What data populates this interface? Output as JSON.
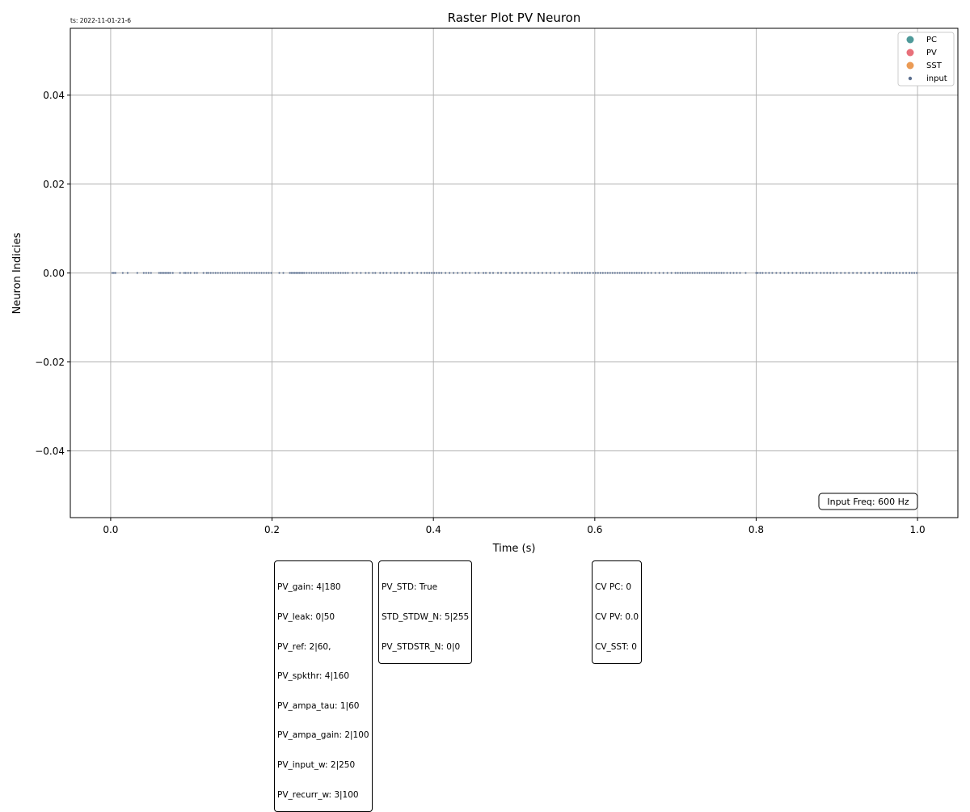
{
  "timestamp": "ts: 2022-11-01-21-6",
  "chart_data": {
    "type": "scatter",
    "title": "Raster Plot PV Neuron",
    "xlabel": "Time (s)",
    "ylabel": "Neuron Indicies",
    "xlim": [
      -0.05,
      1.05
    ],
    "ylim": [
      -0.055,
      0.055
    ],
    "x_ticks": [
      0.0,
      0.2,
      0.4,
      0.6,
      0.8,
      1.0
    ],
    "x_tick_labels": [
      "0.0",
      "0.2",
      "0.4",
      "0.6",
      "0.8",
      "1.0"
    ],
    "y_ticks": [
      0.04,
      0.02,
      0.0,
      -0.02,
      -0.04
    ],
    "y_tick_labels": [
      "0.04",
      "0.02",
      "0.00",
      "−0.02",
      "−0.04"
    ],
    "grid": true,
    "legend_position": "top-right",
    "legend": [
      {
        "label": "PC",
        "color": "#4f9a9a"
      },
      {
        "label": "PV",
        "color": "#e8707a"
      },
      {
        "label": "SST",
        "color": "#eb9b55"
      },
      {
        "label": "input",
        "color": "#5b6f8f"
      }
    ],
    "series": [
      {
        "name": "input",
        "color": "#5b6f8f",
        "y": 0,
        "x": [
          0.002,
          0.004,
          0.006,
          0.015,
          0.021,
          0.033,
          0.041,
          0.044,
          0.047,
          0.05,
          0.06,
          0.062,
          0.064,
          0.066,
          0.068,
          0.07,
          0.072,
          0.074,
          0.077,
          0.086,
          0.091,
          0.093,
          0.096,
          0.099,
          0.104,
          0.107,
          0.115,
          0.119,
          0.121,
          0.124,
          0.127,
          0.13,
          0.133,
          0.136,
          0.139,
          0.142,
          0.145,
          0.148,
          0.151,
          0.154,
          0.157,
          0.16,
          0.163,
          0.166,
          0.169,
          0.172,
          0.175,
          0.178,
          0.181,
          0.184,
          0.187,
          0.19,
          0.193,
          0.196,
          0.199,
          0.209,
          0.214,
          0.222,
          0.224,
          0.226,
          0.228,
          0.23,
          0.232,
          0.234,
          0.236,
          0.238,
          0.24,
          0.243,
          0.246,
          0.249,
          0.252,
          0.255,
          0.258,
          0.261,
          0.264,
          0.267,
          0.27,
          0.273,
          0.276,
          0.279,
          0.282,
          0.285,
          0.288,
          0.291,
          0.294,
          0.3,
          0.305,
          0.31,
          0.316,
          0.32,
          0.325,
          0.328,
          0.334,
          0.338,
          0.342,
          0.347,
          0.352,
          0.355,
          0.36,
          0.364,
          0.37,
          0.374,
          0.38,
          0.385,
          0.389,
          0.392,
          0.395,
          0.398,
          0.401,
          0.404,
          0.407,
          0.41,
          0.415,
          0.42,
          0.425,
          0.43,
          0.436,
          0.44,
          0.445,
          0.452,
          0.456,
          0.462,
          0.465,
          0.47,
          0.474,
          0.48,
          0.484,
          0.49,
          0.495,
          0.5,
          0.505,
          0.51,
          0.515,
          0.52,
          0.525,
          0.53,
          0.535,
          0.54,
          0.545,
          0.55,
          0.556,
          0.562,
          0.567,
          0.572,
          0.575,
          0.578,
          0.581,
          0.584,
          0.588,
          0.591,
          0.594,
          0.598,
          0.601,
          0.604,
          0.607,
          0.61,
          0.613,
          0.616,
          0.619,
          0.622,
          0.625,
          0.628,
          0.631,
          0.634,
          0.637,
          0.64,
          0.643,
          0.646,
          0.649,
          0.652,
          0.655,
          0.658,
          0.662,
          0.666,
          0.67,
          0.675,
          0.68,
          0.685,
          0.69,
          0.695,
          0.7,
          0.703,
          0.706,
          0.709,
          0.712,
          0.715,
          0.718,
          0.721,
          0.724,
          0.727,
          0.73,
          0.733,
          0.736,
          0.739,
          0.742,
          0.745,
          0.748,
          0.751,
          0.754,
          0.757,
          0.76,
          0.764,
          0.768,
          0.772,
          0.776,
          0.78,
          0.787,
          0.8,
          0.802,
          0.805,
          0.808,
          0.812,
          0.816,
          0.82,
          0.825,
          0.83,
          0.835,
          0.84,
          0.845,
          0.85,
          0.855,
          0.858,
          0.862,
          0.866,
          0.87,
          0.875,
          0.88,
          0.884,
          0.888,
          0.892,
          0.896,
          0.9,
          0.905,
          0.91,
          0.915,
          0.92,
          0.925,
          0.93,
          0.935,
          0.94,
          0.945,
          0.95,
          0.955,
          0.96,
          0.963,
          0.966,
          0.97,
          0.974,
          0.978,
          0.982,
          0.986,
          0.99,
          0.993,
          0.996,
          0.999
        ]
      }
    ]
  },
  "annotations": {
    "input_freq": "Input Freq: 600 Hz",
    "params_box": [
      "PV_gain: 4|180",
      "PV_leak: 0|50",
      "PV_ref: 2|60,",
      "PV_spkthr: 4|160",
      "PV_ampa_tau: 1|60",
      "PV_ampa_gain: 2|100",
      "PV_input_w: 2|250",
      "PV_recurr_w: 3|100"
    ],
    "std_box": [
      "PV_STD: True",
      "STD_STDW_N: 5|255",
      "PV_STDSTR_N: 0|0"
    ],
    "cv_box": [
      "CV PC: 0",
      "CV PV: 0.0",
      "CV_SST: 0"
    ]
  }
}
